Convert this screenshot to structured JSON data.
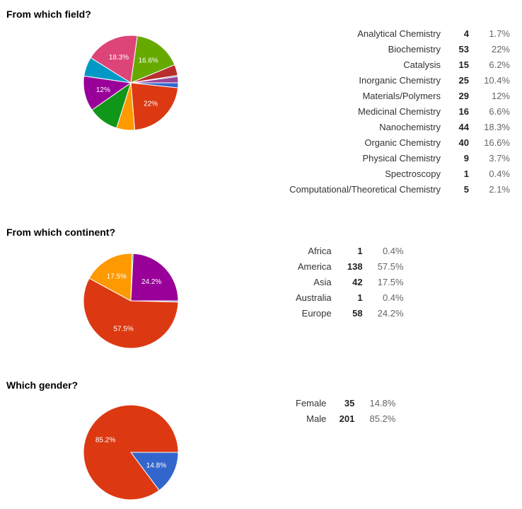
{
  "chart_data": [
    {
      "type": "pie",
      "title": "From which field?",
      "legend": "right",
      "categories": [
        "Analytical Chemistry",
        "Biochemistry",
        "Catalysis",
        "Inorganic Chemistry",
        "Materials/Polymers",
        "Medicinal Chemistry",
        "Nanochemistry",
        "Organic Chemistry",
        "Physical Chemistry",
        "Spectroscopy",
        "Computational/Theoretical Chemistry"
      ],
      "counts": [
        4,
        53,
        15,
        25,
        29,
        16,
        44,
        40,
        9,
        1,
        5
      ],
      "percents": [
        "1.7%",
        "22%",
        "6.2%",
        "10.4%",
        "12%",
        "6.6%",
        "18.3%",
        "16.6%",
        "3.7%",
        "0.4%",
        "2.1%"
      ],
      "values": [
        1.7,
        22,
        6.2,
        10.4,
        12,
        6.6,
        18.3,
        16.6,
        3.7,
        0.4,
        2.1
      ],
      "colors": [
        "#3366cc",
        "#dc3912",
        "#ff9900",
        "#109618",
        "#990099",
        "#0099c6",
        "#dd4477",
        "#66aa00",
        "#b82e2e",
        "#316395",
        "#994499"
      ],
      "slice_labels": [
        "",
        "22%",
        "",
        "",
        "12%",
        "",
        "18.3%",
        "16.6%",
        "",
        "",
        ""
      ]
    },
    {
      "type": "pie",
      "title": "From which continent?",
      "legend": "right",
      "categories": [
        "Africa",
        "America",
        "Asia",
        "Australia",
        "Europe"
      ],
      "counts": [
        1,
        138,
        42,
        1,
        58
      ],
      "percents": [
        "0.4%",
        "57.5%",
        "17.5%",
        "0.4%",
        "24.2%"
      ],
      "values": [
        0.4,
        57.5,
        17.5,
        0.4,
        24.2
      ],
      "colors": [
        "#3366cc",
        "#dc3912",
        "#ff9900",
        "#109618",
        "#990099"
      ],
      "slice_labels": [
        "",
        "57.5%",
        "17.5%",
        "",
        "24.2%"
      ]
    },
    {
      "type": "pie",
      "title": "Which gender?",
      "legend": "right",
      "categories": [
        "Female",
        "Male"
      ],
      "counts": [
        35,
        201
      ],
      "percents": [
        "14.8%",
        "85.2%"
      ],
      "values": [
        14.8,
        85.2
      ],
      "colors": [
        "#3366cc",
        "#dc3912"
      ],
      "slice_labels": [
        "14.8%",
        "85.2%"
      ]
    }
  ]
}
